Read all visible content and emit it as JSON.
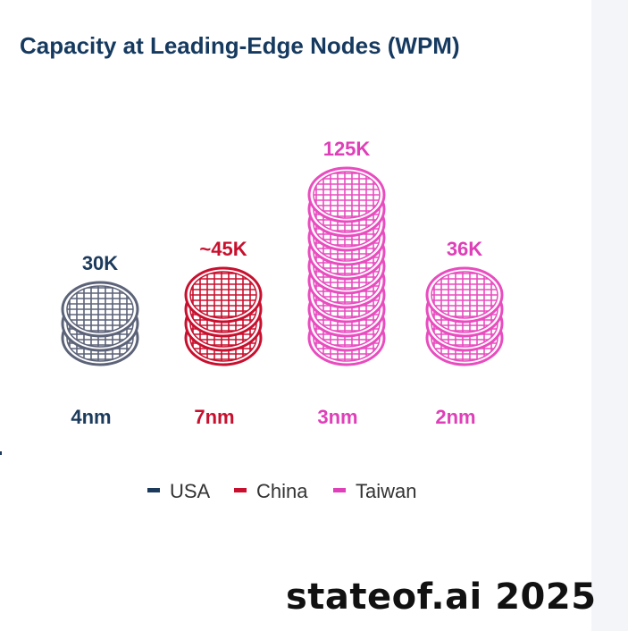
{
  "chart_data": {
    "type": "bar",
    "title": "Capacity at Leading-Edge Nodes (WPM)",
    "categories": [
      "4nm",
      "7nm",
      "3nm",
      "2nm"
    ],
    "values": [
      30000,
      45000,
      125000,
      36000
    ],
    "value_labels": [
      "30K",
      "~45K",
      "125K",
      "36K"
    ],
    "bar_country": [
      "USA",
      "China",
      "Taiwan",
      "Taiwan"
    ],
    "wafers_per_stack": [
      3,
      4,
      11,
      4
    ],
    "colors": {
      "USA": "#1b3a5c",
      "China": "#c8102e",
      "Taiwan": "#df3fb8",
      "USA_wafer": "#5c6378",
      "China_wafer": "#c8102e",
      "Taiwan_wafer": "#e84cbf"
    },
    "legend": {
      "placement": "bottom-center",
      "entries": [
        {
          "name": "USA",
          "color": "#1b3a5c"
        },
        {
          "name": "China",
          "color": "#c8102e"
        },
        {
          "name": "Taiwan",
          "color": "#df3fb8"
        }
      ]
    },
    "grid": false,
    "xlabel": "",
    "ylabel": ""
  },
  "watermark": "stateof.ai 2025",
  "icons": {
    "wafer": "silicon-wafer-icon"
  }
}
